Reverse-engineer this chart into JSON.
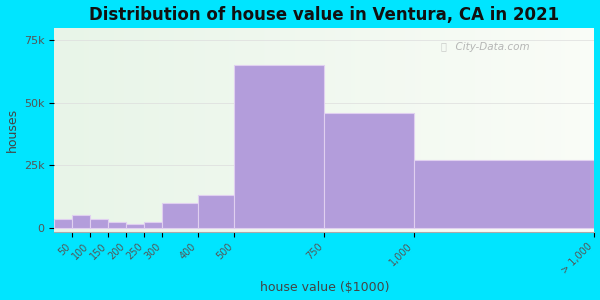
{
  "title": "Distribution of house value in Ventura, CA in 2021",
  "xlabel": "house value ($1000)",
  "ylabel": "houses",
  "bin_edges": [
    0,
    50,
    100,
    150,
    200,
    250,
    300,
    400,
    500,
    750,
    1000,
    1500
  ],
  "bin_labels": [
    "50",
    "100",
    "150",
    "200",
    "250",
    "300",
    "400",
    "500",
    "750",
    "1,000",
    "> 1,000"
  ],
  "bar_values": [
    3500,
    5000,
    3500,
    2500,
    1500,
    2500,
    10000,
    13000,
    65000,
    46000,
    27000
  ],
  "bar_color": "#b39ddb",
  "bar_edgecolor": "#e0d0f0",
  "background_outer": "#00e5ff",
  "ytick_labels": [
    "0",
    "25k",
    "50k",
    "75k"
  ],
  "ytick_values": [
    0,
    25000,
    50000,
    75000
  ],
  "ymax": 80000,
  "title_fontsize": 12,
  "axis_label_fontsize": 9,
  "watermark_text": "City-Data.com"
}
